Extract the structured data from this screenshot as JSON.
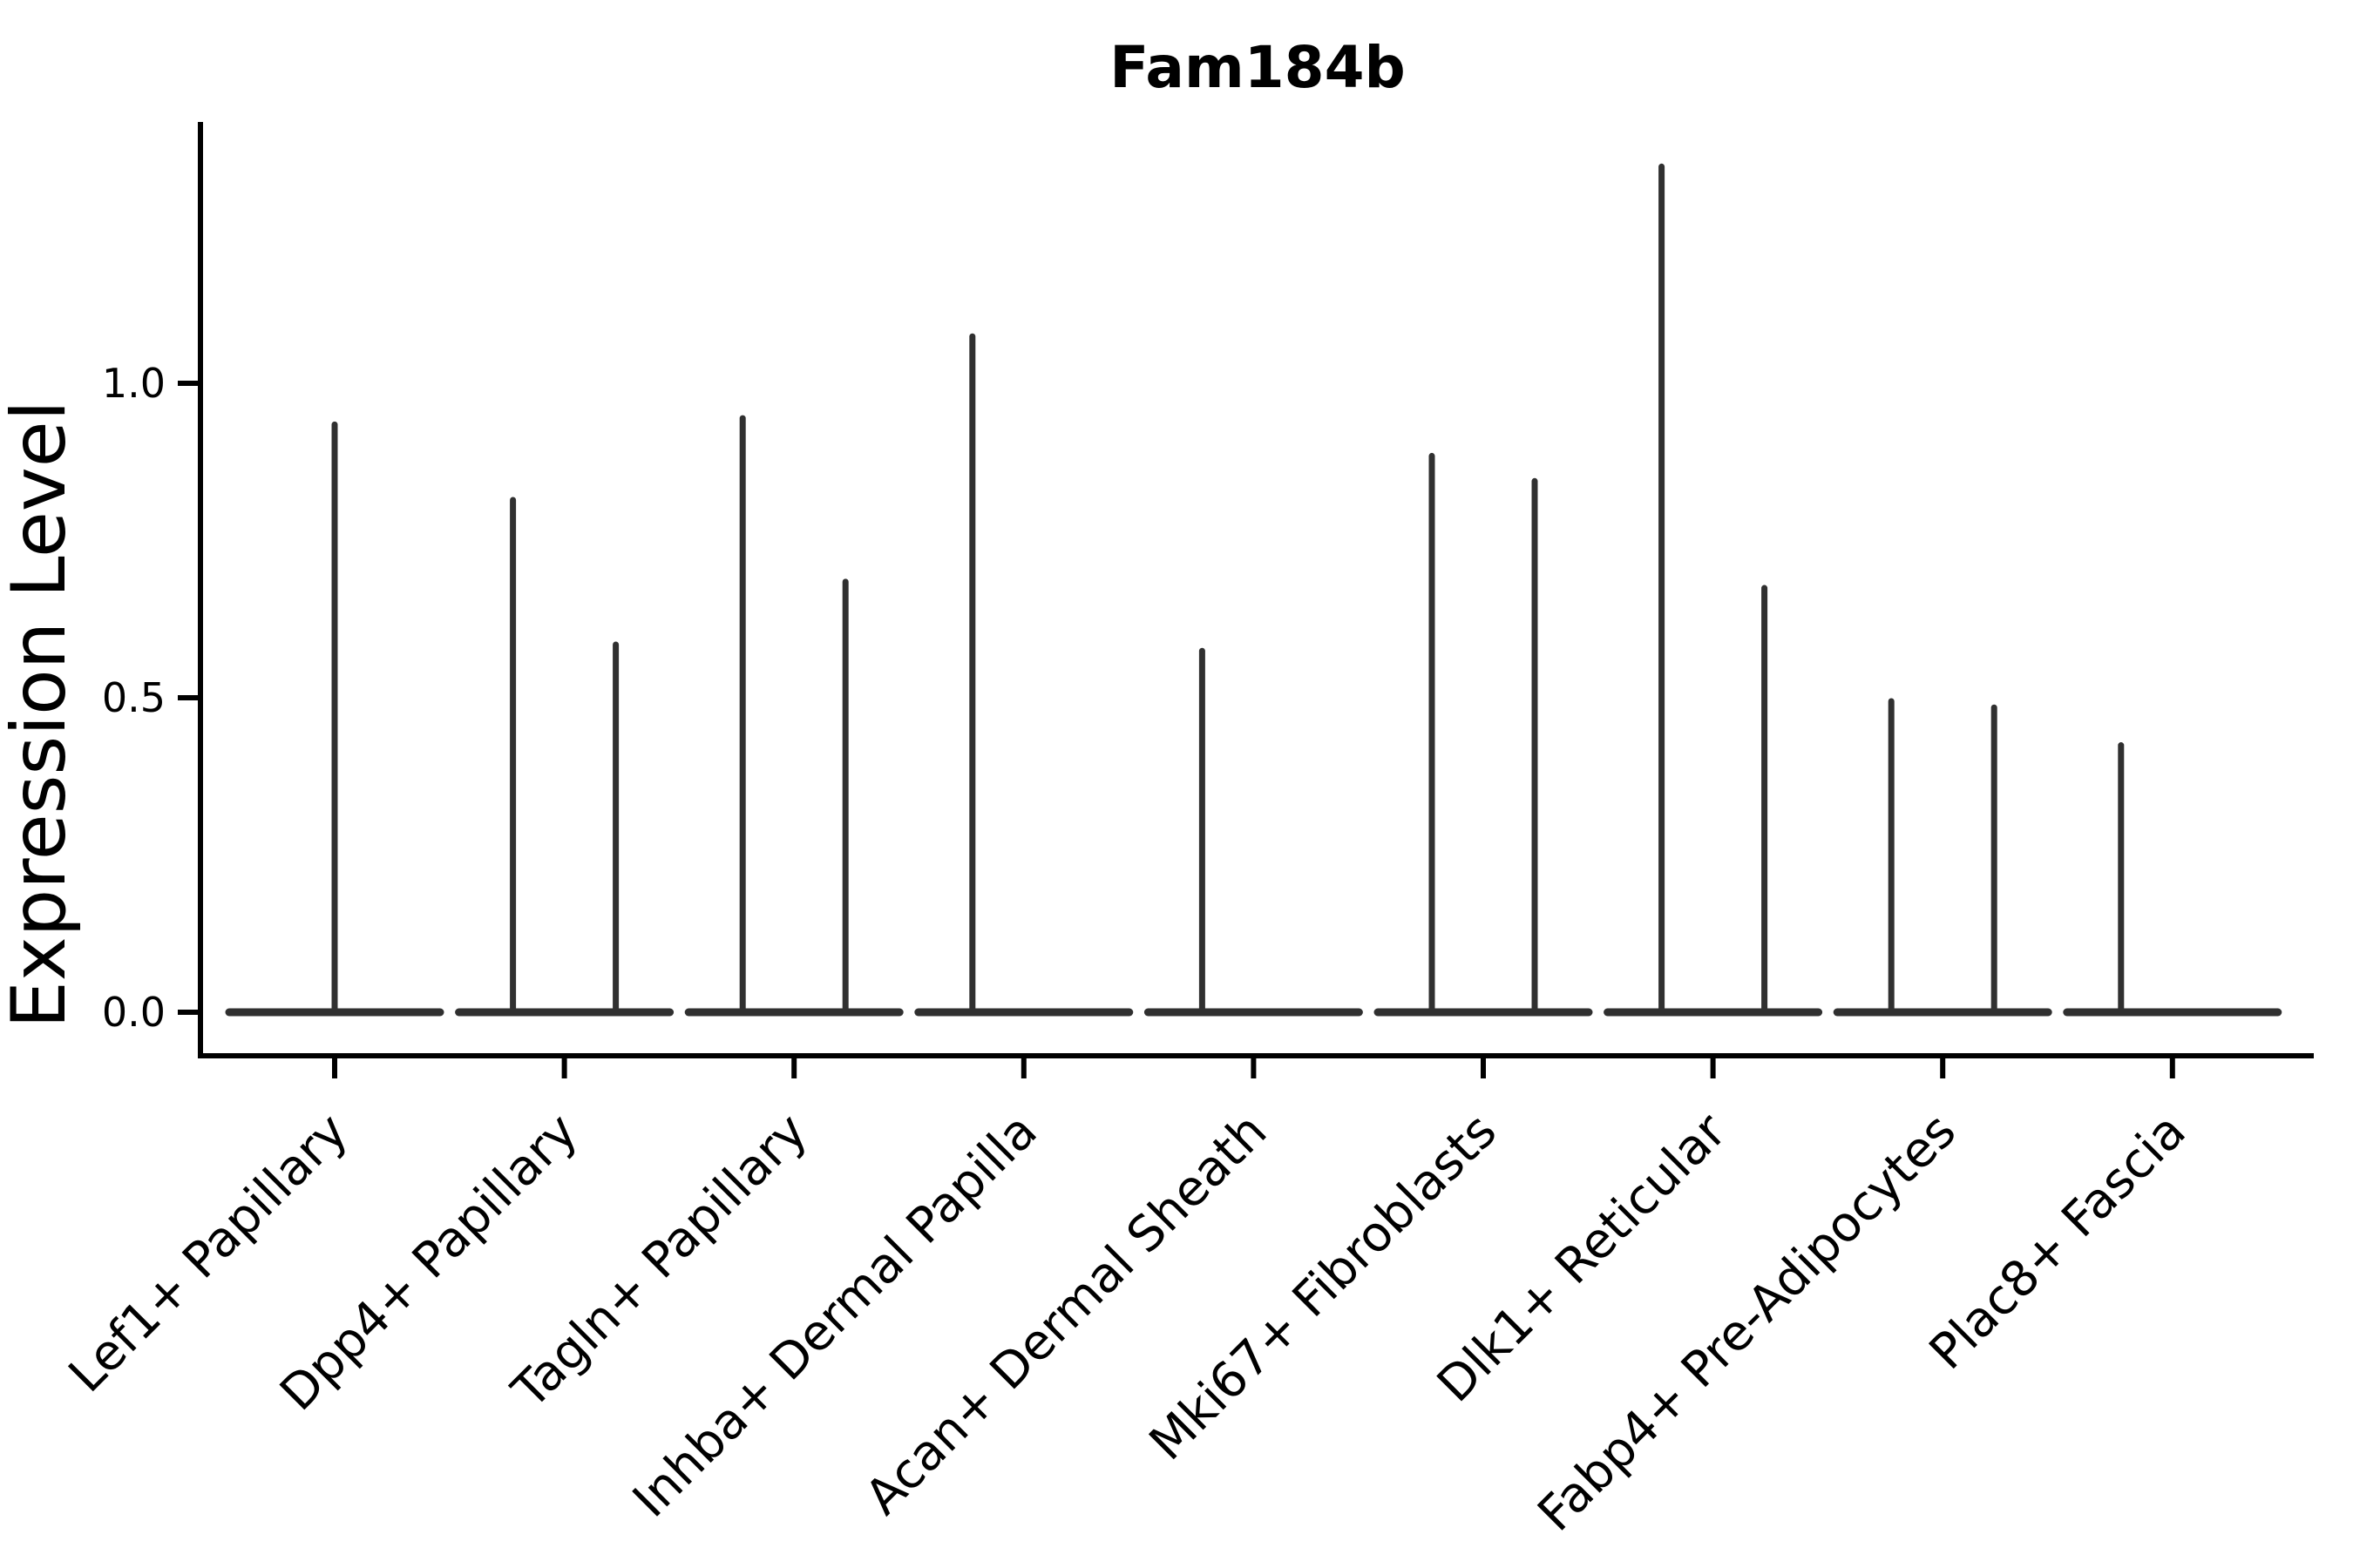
{
  "figure": {
    "background_color": "#ffffff",
    "axis_color": "#000000",
    "text_color": "#000000",
    "violin_color": "#303030"
  },
  "chart_data": {
    "type": "violin",
    "title": "Fam184b",
    "ylabel": "Expression Level",
    "xlabel": "",
    "ytick_labels": [
      "0.0",
      "0.5",
      "1.0"
    ],
    "ytick_values": [
      0.0,
      0.5,
      1.0
    ],
    "ylim": [
      -0.07,
      1.42
    ],
    "grid": false,
    "legend_position": "none",
    "categories": [
      "Lef1+ Papillary",
      "Dpp4+ Papillary",
      "Tagln+ Papillary",
      "Inhba+ Dermal Papilla",
      "Acan+ Dermal Sheath",
      "Mki67+ Fibroblasts",
      "Dlk1+ Reticular",
      "Fabp4+ Pre-Adipocytes",
      "Plac8+ Fascia"
    ],
    "violins": [
      {
        "category": "Lef1+ Papillary",
        "spikes": [
          {
            "position": "center",
            "max_expression": 0.94
          }
        ]
      },
      {
        "category": "Dpp4+ Papillary",
        "spikes": [
          {
            "position": "left",
            "max_expression": 0.82
          },
          {
            "position": "right",
            "max_expression": 0.59
          }
        ]
      },
      {
        "category": "Tagln+ Papillary",
        "spikes": [
          {
            "position": "left",
            "max_expression": 0.95
          },
          {
            "position": "right",
            "max_expression": 0.69
          }
        ]
      },
      {
        "category": "Inhba+ Dermal Papilla",
        "spikes": [
          {
            "position": "left",
            "max_expression": 1.08
          }
        ]
      },
      {
        "category": "Acan+ Dermal Sheath",
        "spikes": [
          {
            "position": "left",
            "max_expression": 0.58
          }
        ]
      },
      {
        "category": "Mki67+ Fibroblasts",
        "spikes": [
          {
            "position": "left",
            "max_expression": 0.89
          },
          {
            "position": "right",
            "max_expression": 0.85
          }
        ]
      },
      {
        "category": "Dlk1+ Reticular",
        "spikes": [
          {
            "position": "left",
            "max_expression": 1.35
          },
          {
            "position": "right",
            "max_expression": 0.68
          }
        ]
      },
      {
        "category": "Fabp4+ Pre-Adipocytes",
        "spikes": [
          {
            "position": "left",
            "max_expression": 0.5
          },
          {
            "position": "right",
            "max_expression": 0.49
          }
        ]
      },
      {
        "category": "Plac8+ Fascia",
        "spikes": [
          {
            "position": "left",
            "max_expression": 0.43
          }
        ]
      }
    ]
  }
}
